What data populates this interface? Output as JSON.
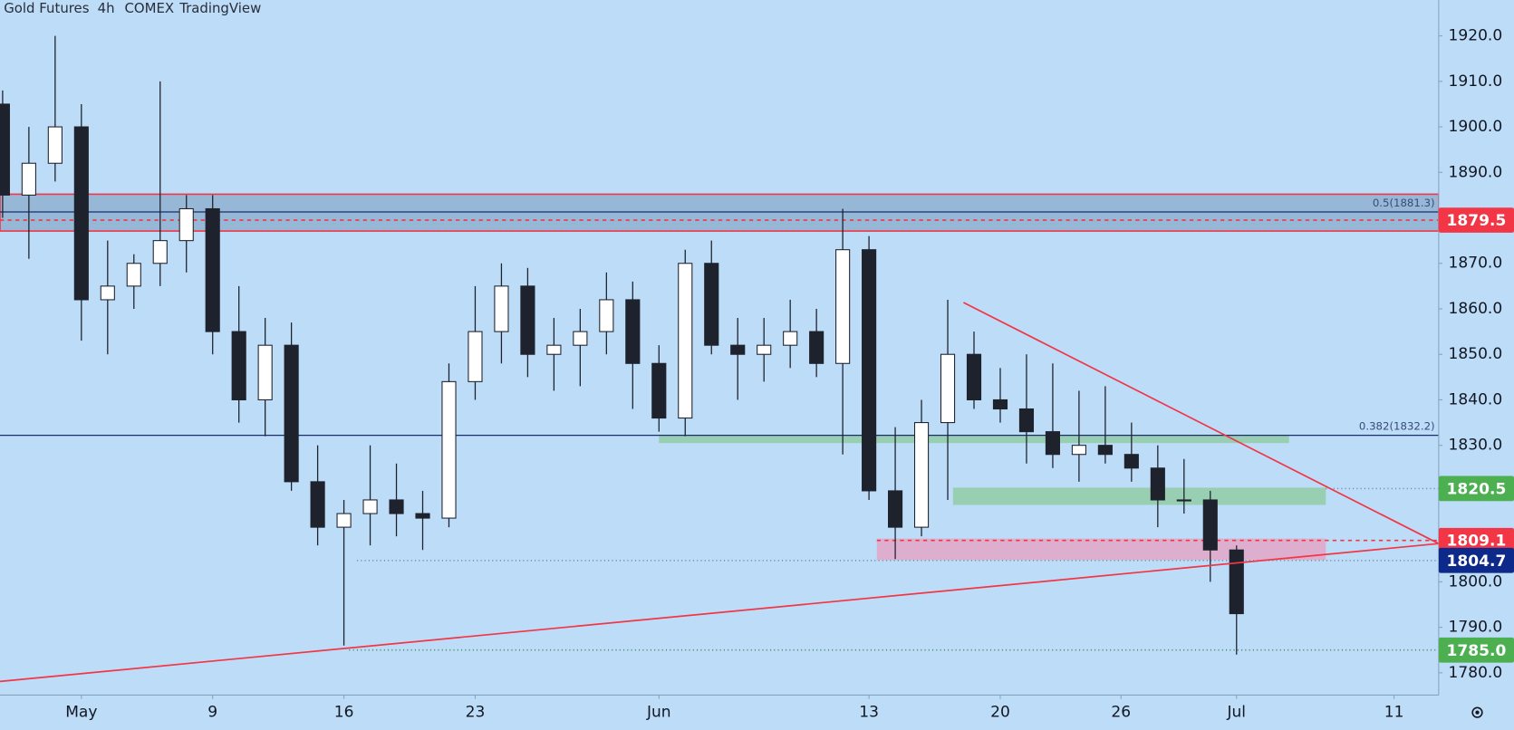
{
  "chart_data": {
    "type": "candlestick",
    "title": "Gold Futures",
    "interval": "4h",
    "exchange": "COMEX",
    "source": "TradingView",
    "x": [
      -3,
      -2,
      -1,
      0,
      1,
      2,
      3,
      4,
      5,
      6,
      7,
      8,
      9,
      10,
      11,
      12,
      13,
      14,
      15,
      16,
      17,
      18,
      19,
      20,
      21,
      22,
      23,
      24,
      25,
      26,
      27,
      28,
      29,
      30,
      31,
      32,
      33,
      34,
      35,
      36,
      37,
      38,
      39,
      40,
      41,
      42,
      43,
      44
    ],
    "open": [
      1905,
      1885,
      1892,
      1900,
      1862,
      1865,
      1870,
      1875,
      1882,
      1855,
      1840,
      1852,
      1822,
      1812,
      1815,
      1818,
      1815,
      1814,
      1844,
      1855,
      1865,
      1850,
      1852,
      1855,
      1862,
      1848,
      1836,
      1870,
      1852,
      1850,
      1852,
      1855,
      1848,
      1873,
      1820,
      1812,
      1835,
      1850,
      1840,
      1838,
      1833,
      1828,
      1830,
      1828,
      1825,
      1818,
      1818,
      1807
    ],
    "high": [
      1908,
      1900,
      1920,
      1905,
      1875,
      1872,
      1910,
      1885,
      1885,
      1865,
      1858,
      1857,
      1830,
      1818,
      1830,
      1826,
      1820,
      1848,
      1865,
      1870,
      1869,
      1858,
      1860,
      1868,
      1866,
      1852,
      1873,
      1875,
      1858,
      1858,
      1862,
      1860,
      1882,
      1876,
      1834,
      1840,
      1862,
      1855,
      1847,
      1850,
      1848,
      1842,
      1843,
      1835,
      1830,
      1827,
      1820,
      1808
    ],
    "low": [
      1880,
      1871,
      1888,
      1853,
      1850,
      1860,
      1865,
      1868,
      1850,
      1835,
      1832,
      1820,
      1808,
      1786,
      1808,
      1810,
      1807,
      1812,
      1840,
      1848,
      1845,
      1842,
      1843,
      1850,
      1838,
      1833,
      1832,
      1850,
      1840,
      1844,
      1847,
      1845,
      1828,
      1818,
      1805,
      1810,
      1818,
      1838,
      1835,
      1826,
      1825,
      1822,
      1826,
      1822,
      1812,
      1815,
      1800,
      1784
    ],
    "close": [
      1885,
      1892,
      1900,
      1862,
      1865,
      1870,
      1875,
      1882,
      1855,
      1840,
      1852,
      1822,
      1812,
      1815,
      1818,
      1815,
      1814,
      1844,
      1855,
      1865,
      1850,
      1852,
      1855,
      1862,
      1848,
      1836,
      1870,
      1852,
      1850,
      1852,
      1855,
      1848,
      1873,
      1820,
      1812,
      1835,
      1850,
      1840,
      1838,
      1833,
      1828,
      1830,
      1828,
      1825,
      1818,
      1818,
      1807,
      1793
    ],
    "up_color": "#ffffff",
    "down_color": "#1e222d",
    "wick_color": "#1e222d",
    "xlim": [
      -3.1,
      51.7
    ],
    "ylim": [
      1775.1,
      1927.85
    ],
    "xticks": [
      {
        "value": 0,
        "label": "May"
      },
      {
        "value": 5,
        "label": "9"
      },
      {
        "value": 10,
        "label": "16"
      },
      {
        "value": 15,
        "label": "23"
      },
      {
        "value": 22,
        "label": "Jun"
      },
      {
        "value": 30,
        "label": "13"
      },
      {
        "value": 35,
        "label": "20"
      },
      {
        "value": 39.6,
        "label": "26"
      },
      {
        "value": 44,
        "label": "Jul"
      },
      {
        "value": 50,
        "label": "11"
      }
    ],
    "yticks": [
      {
        "value": 1780,
        "label": "1780.0"
      },
      {
        "value": 1790,
        "label": "1790.0"
      },
      {
        "value": 1800,
        "label": "1800.0"
      },
      {
        "value": 1810,
        "label": "1810.0"
      },
      {
        "value": 1820,
        "label": "1820.0"
      },
      {
        "value": 1830,
        "label": "1830.0"
      },
      {
        "value": 1840,
        "label": "1840.0"
      },
      {
        "value": 1850,
        "label": "1850.0"
      },
      {
        "value": 1860,
        "label": "1860.0"
      },
      {
        "value": 1870,
        "label": "1870.0"
      },
      {
        "value": 1880,
        "label": "1880.0"
      },
      {
        "value": 1890,
        "label": "1890.0"
      },
      {
        "value": 1900,
        "label": "1900.0"
      },
      {
        "value": 1910,
        "label": "1910.0"
      },
      {
        "value": 1920,
        "label": "1920.0"
      }
    ],
    "zones": [
      {
        "y": [
          1877.1,
          1885.2
        ],
        "x": [
          -3.1,
          51.7
        ],
        "color": "#7f9fc0",
        "border": "#f23645"
      },
      {
        "y": [
          1830.5,
          1832.2
        ],
        "x": [
          22,
          46
        ],
        "color": "#81c784"
      },
      {
        "y": [
          1816.9,
          1820.7
        ],
        "x": [
          33.2,
          47.4
        ],
        "color": "#81c784"
      },
      {
        "y": [
          1804.8,
          1809.5
        ],
        "x": [
          30.3,
          47.4
        ],
        "color": "#f48fb1"
      }
    ],
    "levels": [
      {
        "value": 1881.3,
        "color": "#1c2c6c",
        "style": "solid",
        "from": -3.1,
        "label": "0.5(1881.3)"
      },
      {
        "value": 1879.5,
        "color": "#f23645",
        "style": "dotted",
        "from": -3.1,
        "tag_label": "1879.5",
        "tag_color": "#f23645"
      },
      {
        "value": 1832.2,
        "color": "#1c2c6c",
        "style": "solid",
        "from": -3.1,
        "label": "0.382(1832.2)"
      },
      {
        "value": 1820.5,
        "color": "#7a8aa0",
        "style": "dotted",
        "from": 47.4,
        "tag_label": "1820.5",
        "tag_color": "#4caf50"
      },
      {
        "value": 1809.1,
        "color": "#f23645",
        "style": "dotted",
        "from": 30.3,
        "tag_label": "1809.1",
        "tag_color": "#f23645"
      },
      {
        "value": 1804.7,
        "color": "#7a8aa0",
        "style": "dotted",
        "from": 10.5,
        "tag_label": "1804.7",
        "tag_color": "#0d2a8a"
      },
      {
        "value": 1785,
        "color": "#4c8a5c",
        "style": "dotted",
        "from": 10.2,
        "tag_label": "1785.0",
        "tag_color": "#4caf50"
      }
    ],
    "trendlines": [
      {
        "x": [
          33.6,
          51.7
        ],
        "y": [
          1861.4,
          1808.4
        ],
        "color": "#f23645"
      },
      {
        "x": [
          -3.1,
          51.7
        ],
        "y": [
          1778.1,
          1808.4
        ],
        "color": "#f23645"
      }
    ]
  }
}
